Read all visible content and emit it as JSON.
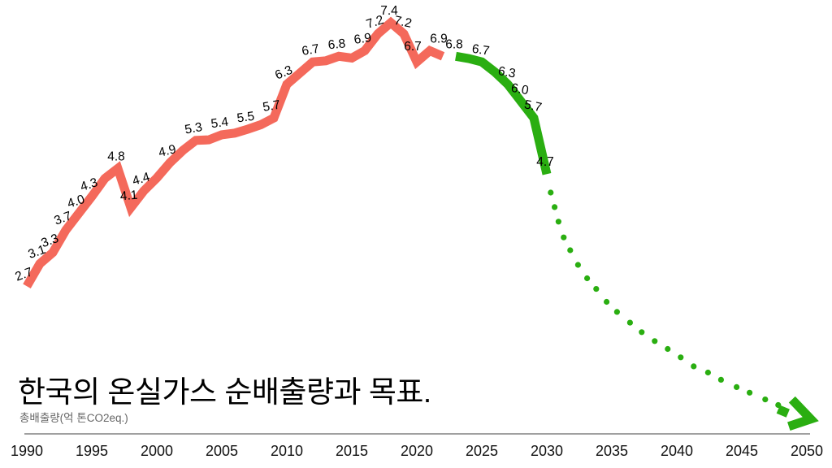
{
  "chart_data": {
    "type": "line",
    "title": "한국의 온실가스 순배출량과 목표.",
    "unit_label": "총배출량(억 톤CO2eq.)",
    "x_ticks": [
      "1990",
      "1995",
      "2000",
      "2005",
      "2010",
      "2015",
      "2020",
      "2025",
      "2030",
      "2035",
      "2040",
      "2045",
      "2050"
    ],
    "x_range": [
      1990,
      2050
    ],
    "y_range": [
      0,
      7.4
    ],
    "grid": "off",
    "legend": "none",
    "colors": {
      "historical": "#F4695B",
      "target": "#2AAE11",
      "axis_line": "#A0A0A0",
      "axis_text": "#111111",
      "data_label": "#000000"
    },
    "series": [
      {
        "name": "historical-net-emissions",
        "style": "solid",
        "color": "#F4695B",
        "points": [
          {
            "year": 1990,
            "value": 2.7,
            "label": "2.7",
            "rot": -20
          },
          {
            "year": 1991,
            "value": 3.1,
            "label": "3.1",
            "rot": -20
          },
          {
            "year": 1992,
            "value": 3.3,
            "label": "3.3",
            "rot": -20
          },
          {
            "year": 1993,
            "value": 3.7,
            "label": "3.7",
            "rot": -20
          },
          {
            "year": 1994,
            "value": 4.0,
            "label": "4.0",
            "rot": -18
          },
          {
            "year": 1995,
            "value": 4.3,
            "label": "4.3",
            "rot": -18
          },
          {
            "year": 1996,
            "value": 4.62
          },
          {
            "year": 1997,
            "value": 4.8,
            "label": "4.8"
          },
          {
            "year": 1998,
            "value": 4.1,
            "label": "4.1",
            "rot": -5
          },
          {
            "year": 1999,
            "value": 4.4,
            "label": "4.4",
            "rot": -16
          },
          {
            "year": 2000,
            "value": 4.63
          },
          {
            "year": 2001,
            "value": 4.9,
            "label": "4.9",
            "rot": -14
          },
          {
            "year": 2002,
            "value": 5.12
          },
          {
            "year": 2003,
            "value": 5.3,
            "label": "5.3",
            "rot": -10
          },
          {
            "year": 2004,
            "value": 5.31
          },
          {
            "year": 2005,
            "value": 5.4,
            "label": "5.4",
            "rot": -8
          },
          {
            "year": 2006,
            "value": 5.43
          },
          {
            "year": 2007,
            "value": 5.5,
            "label": "5.5",
            "rot": -8
          },
          {
            "year": 2008,
            "value": 5.58
          },
          {
            "year": 2009,
            "value": 5.7,
            "label": "5.7",
            "rot": -10
          },
          {
            "year": 2010,
            "value": 6.3,
            "label": "6.3",
            "rot": -22
          },
          {
            "year": 2011,
            "value": 6.5
          },
          {
            "year": 2012,
            "value": 6.7,
            "label": "6.7",
            "rot": -10
          },
          {
            "year": 2013,
            "value": 6.72
          },
          {
            "year": 2014,
            "value": 6.8,
            "label": "6.8",
            "rot": -6
          },
          {
            "year": 2015,
            "value": 6.77
          },
          {
            "year": 2016,
            "value": 6.9,
            "label": "6.9",
            "rot": -8
          },
          {
            "year": 2017,
            "value": 7.2,
            "label": "7.2",
            "rot": -18
          },
          {
            "year": 2018,
            "value": 7.4,
            "label": "7.4"
          },
          {
            "year": 2019,
            "value": 7.2,
            "label": "7.2",
            "rot": 12
          },
          {
            "year": 2020,
            "value": 6.7,
            "label": "6.7",
            "dx": -3,
            "dy": -4
          },
          {
            "year": 2021,
            "value": 6.9,
            "label": "6.9",
            "dx": 13
          },
          {
            "year": 2022,
            "value": 6.8
          }
        ]
      },
      {
        "name": "target-2030-path",
        "style": "solid",
        "color": "#2AAE11",
        "points": [
          {
            "year": 2023,
            "value": 6.8,
            "label": "6.8"
          },
          {
            "year": 2024,
            "value": 6.76
          },
          {
            "year": 2025,
            "value": 6.7,
            "label": "6.7",
            "rot": 8
          },
          {
            "year": 2026,
            "value": 6.52
          },
          {
            "year": 2027,
            "value": 6.3,
            "label": "6.3",
            "rot": 10
          },
          {
            "year": 2028,
            "value": 6.0,
            "label": "6.0",
            "rot": 10
          },
          {
            "year": 2029,
            "value": 5.7,
            "label": "5.7",
            "rot": 12
          },
          {
            "year": 2030,
            "value": 4.7,
            "label": "4.7"
          }
        ]
      },
      {
        "name": "target-2050-projection",
        "style": "dotted",
        "color": "#2AAE11",
        "points": [
          {
            "year": 2030.3,
            "value": 4.37
          },
          {
            "year": 2030.6,
            "value": 4.11
          },
          {
            "year": 2030.9,
            "value": 3.85
          },
          {
            "year": 2031.3,
            "value": 3.57
          },
          {
            "year": 2031.8,
            "value": 3.34
          },
          {
            "year": 2032.4,
            "value": 3.08
          },
          {
            "year": 2033.1,
            "value": 2.84
          },
          {
            "year": 2033.8,
            "value": 2.65
          },
          {
            "year": 2034.6,
            "value": 2.42
          },
          {
            "year": 2035.4,
            "value": 2.24
          },
          {
            "year": 2036.4,
            "value": 2.05
          },
          {
            "year": 2037.3,
            "value": 1.88
          },
          {
            "year": 2038.3,
            "value": 1.72
          },
          {
            "year": 2039.3,
            "value": 1.58
          },
          {
            "year": 2040.3,
            "value": 1.43
          },
          {
            "year": 2041.3,
            "value": 1.27
          },
          {
            "year": 2042.4,
            "value": 1.16
          },
          {
            "year": 2043.4,
            "value": 1.03
          },
          {
            "year": 2044.6,
            "value": 0.9
          },
          {
            "year": 2045.6,
            "value": 0.8
          },
          {
            "year": 2046.8,
            "value": 0.68
          },
          {
            "year": 2047.8,
            "value": 0.58
          }
        ],
        "arrow_tip": {
          "year": 2050.3,
          "value": 0.33
        }
      }
    ]
  }
}
